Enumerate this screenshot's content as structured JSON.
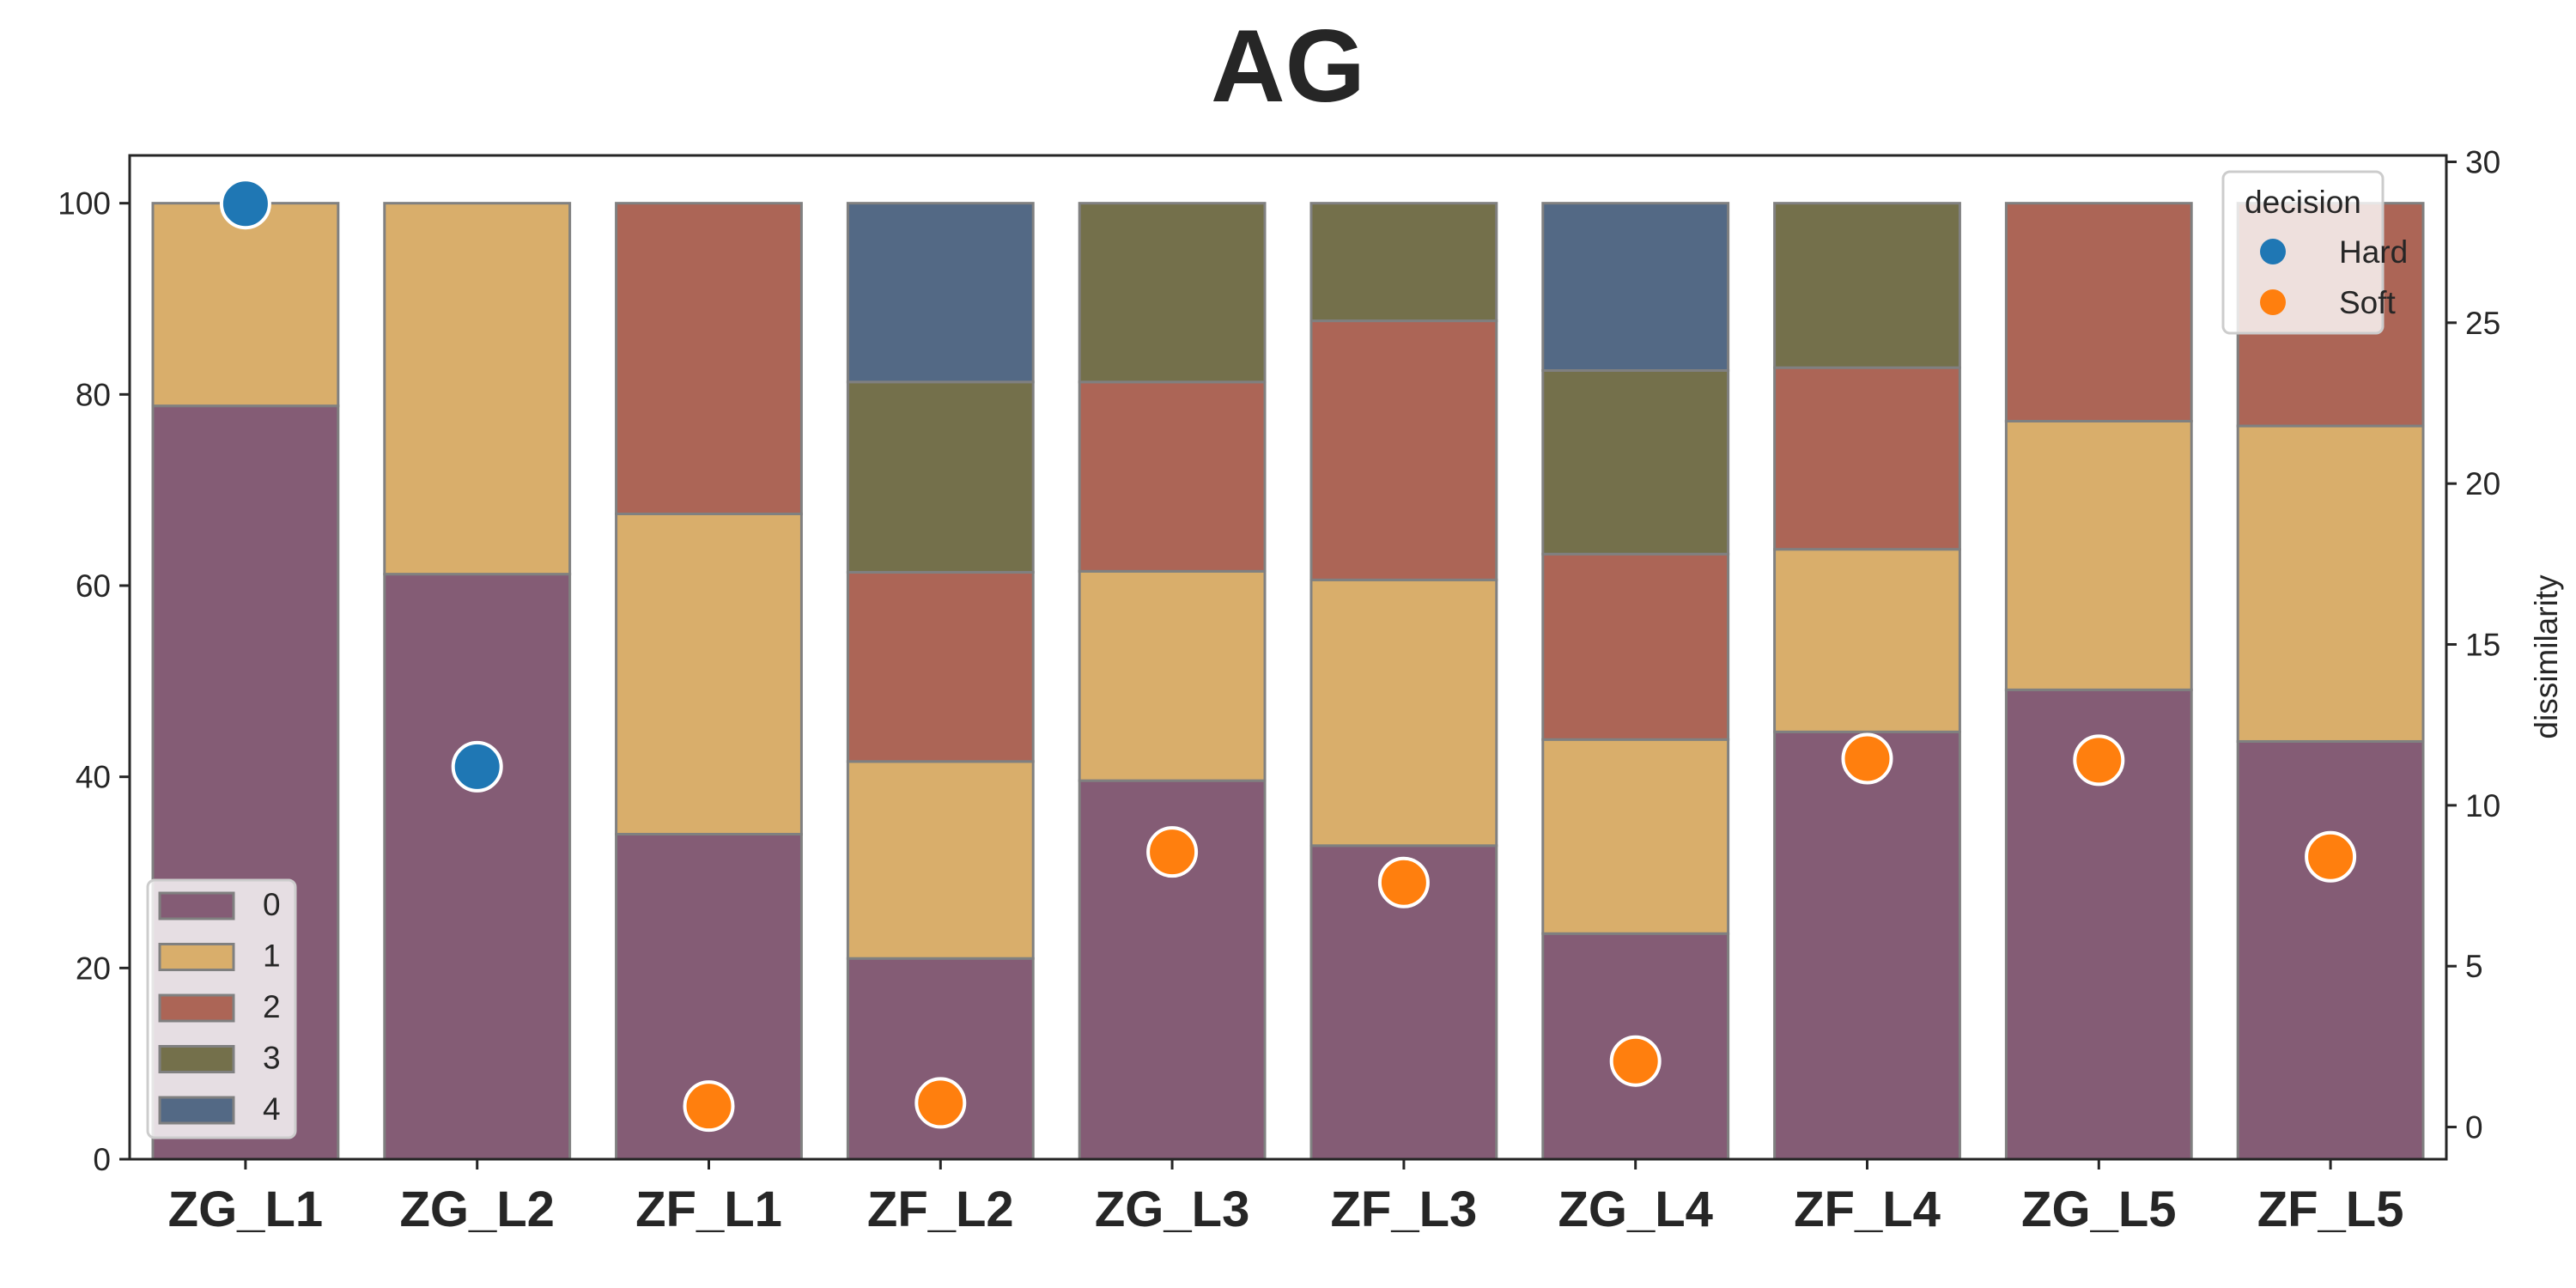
{
  "chart_data": {
    "type": "bar",
    "subtype": "stacked-percent-with-scatter-overlay",
    "title": "AG",
    "categories": [
      "ZG_L1",
      "ZG_L2",
      "ZF_L1",
      "ZF_L2",
      "ZG_L3",
      "ZF_L3",
      "ZG_L4",
      "ZF_L4",
      "ZG_L5",
      "ZF_L5"
    ],
    "series": [
      {
        "name": "0",
        "color": "#845c75",
        "values": [
          78.8,
          61.2,
          34.0,
          21.0,
          39.6,
          32.8,
          23.6,
          44.7,
          49.1,
          43.7
        ]
      },
      {
        "name": "1",
        "color": "#d9ae6b",
        "values": [
          21.2,
          38.8,
          33.5,
          20.6,
          21.9,
          27.8,
          20.3,
          19.1,
          28.1,
          33.0
        ]
      },
      {
        "name": "2",
        "color": "#ac6556",
        "values": [
          0,
          0,
          32.5,
          19.8,
          19.8,
          27.1,
          19.4,
          19.0,
          22.8,
          23.3
        ]
      },
      {
        "name": "3",
        "color": "#74704b",
        "values": [
          0,
          0,
          0,
          19.9,
          18.7,
          12.3,
          19.2,
          17.2,
          0,
          0
        ]
      },
      {
        "name": "4",
        "color": "#536985",
        "values": [
          0,
          0,
          0,
          18.7,
          0,
          0,
          17.5,
          0,
          0,
          0
        ]
      }
    ],
    "ylim": [
      0,
      105
    ],
    "yticks": [
      "0",
      "20",
      "40",
      "60",
      "80",
      "100"
    ],
    "overlay": {
      "type": "scatter",
      "y_axis": "right",
      "ylabel": "dissimilarity",
      "ylim": [
        -1,
        30.2
      ],
      "yticks": [
        "0",
        "5",
        "10",
        "15",
        "20",
        "25",
        "30"
      ],
      "legend_title": "decision",
      "legend_items": [
        {
          "label": "Hard",
          "color": "#1f77b4"
        },
        {
          "label": "Soft",
          "color": "#ff7f0e"
        }
      ],
      "points": [
        {
          "category": "ZG_L1",
          "value": 28.7,
          "decision": "Hard"
        },
        {
          "category": "ZG_L2",
          "value": 11.2,
          "decision": "Hard"
        },
        {
          "category": "ZF_L1",
          "value": 0.65,
          "decision": "Soft"
        },
        {
          "category": "ZF_L2",
          "value": 0.75,
          "decision": "Soft"
        },
        {
          "category": "ZG_L3",
          "value": 8.55,
          "decision": "Soft"
        },
        {
          "category": "ZF_L3",
          "value": 7.6,
          "decision": "Soft"
        },
        {
          "category": "ZG_L4",
          "value": 2.05,
          "decision": "Soft"
        },
        {
          "category": "ZF_L4",
          "value": 11.45,
          "decision": "Soft"
        },
        {
          "category": "ZG_L5",
          "value": 11.4,
          "decision": "Soft"
        },
        {
          "category": "ZF_L5",
          "value": 8.4,
          "decision": "Soft"
        }
      ]
    },
    "stack_legend_placement": "lower-left",
    "scatter_legend_placement": "upper-right",
    "grid": false
  }
}
